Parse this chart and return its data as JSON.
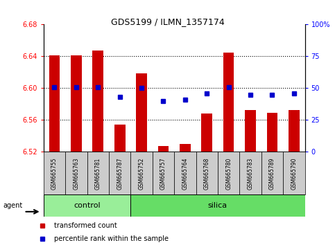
{
  "title": "GDS5199 / ILMN_1357174",
  "samples": [
    "GSM665755",
    "GSM665763",
    "GSM665781",
    "GSM665787",
    "GSM665752",
    "GSM665757",
    "GSM665764",
    "GSM665768",
    "GSM665780",
    "GSM665783",
    "GSM665789",
    "GSM665790"
  ],
  "bar_values": [
    6.641,
    6.641,
    6.647,
    6.554,
    6.619,
    6.527,
    6.53,
    6.568,
    6.645,
    6.573,
    6.569,
    6.573
  ],
  "percentile_values": [
    51,
    51,
    51,
    43,
    50,
    40,
    41,
    46,
    51,
    45,
    45,
    46
  ],
  "bar_color": "#cc0000",
  "percentile_color": "#0000cc",
  "ylim_left": [
    6.52,
    6.68
  ],
  "ylim_right": [
    0,
    100
  ],
  "yticks_left": [
    6.52,
    6.56,
    6.6,
    6.64,
    6.68
  ],
  "yticks_right": [
    0,
    25,
    50,
    75,
    100
  ],
  "ytick_labels_right": [
    "0",
    "25",
    "50",
    "75",
    "100%"
  ],
  "control_count": 4,
  "silica_count": 8,
  "group_label_control": "control",
  "group_label_silica": "silica",
  "agent_label": "agent",
  "legend_bar_label": "transformed count",
  "legend_dot_label": "percentile rank within the sample",
  "bg_control": "#99ee99",
  "bg_silica": "#66dd66",
  "bar_width": 0.5
}
